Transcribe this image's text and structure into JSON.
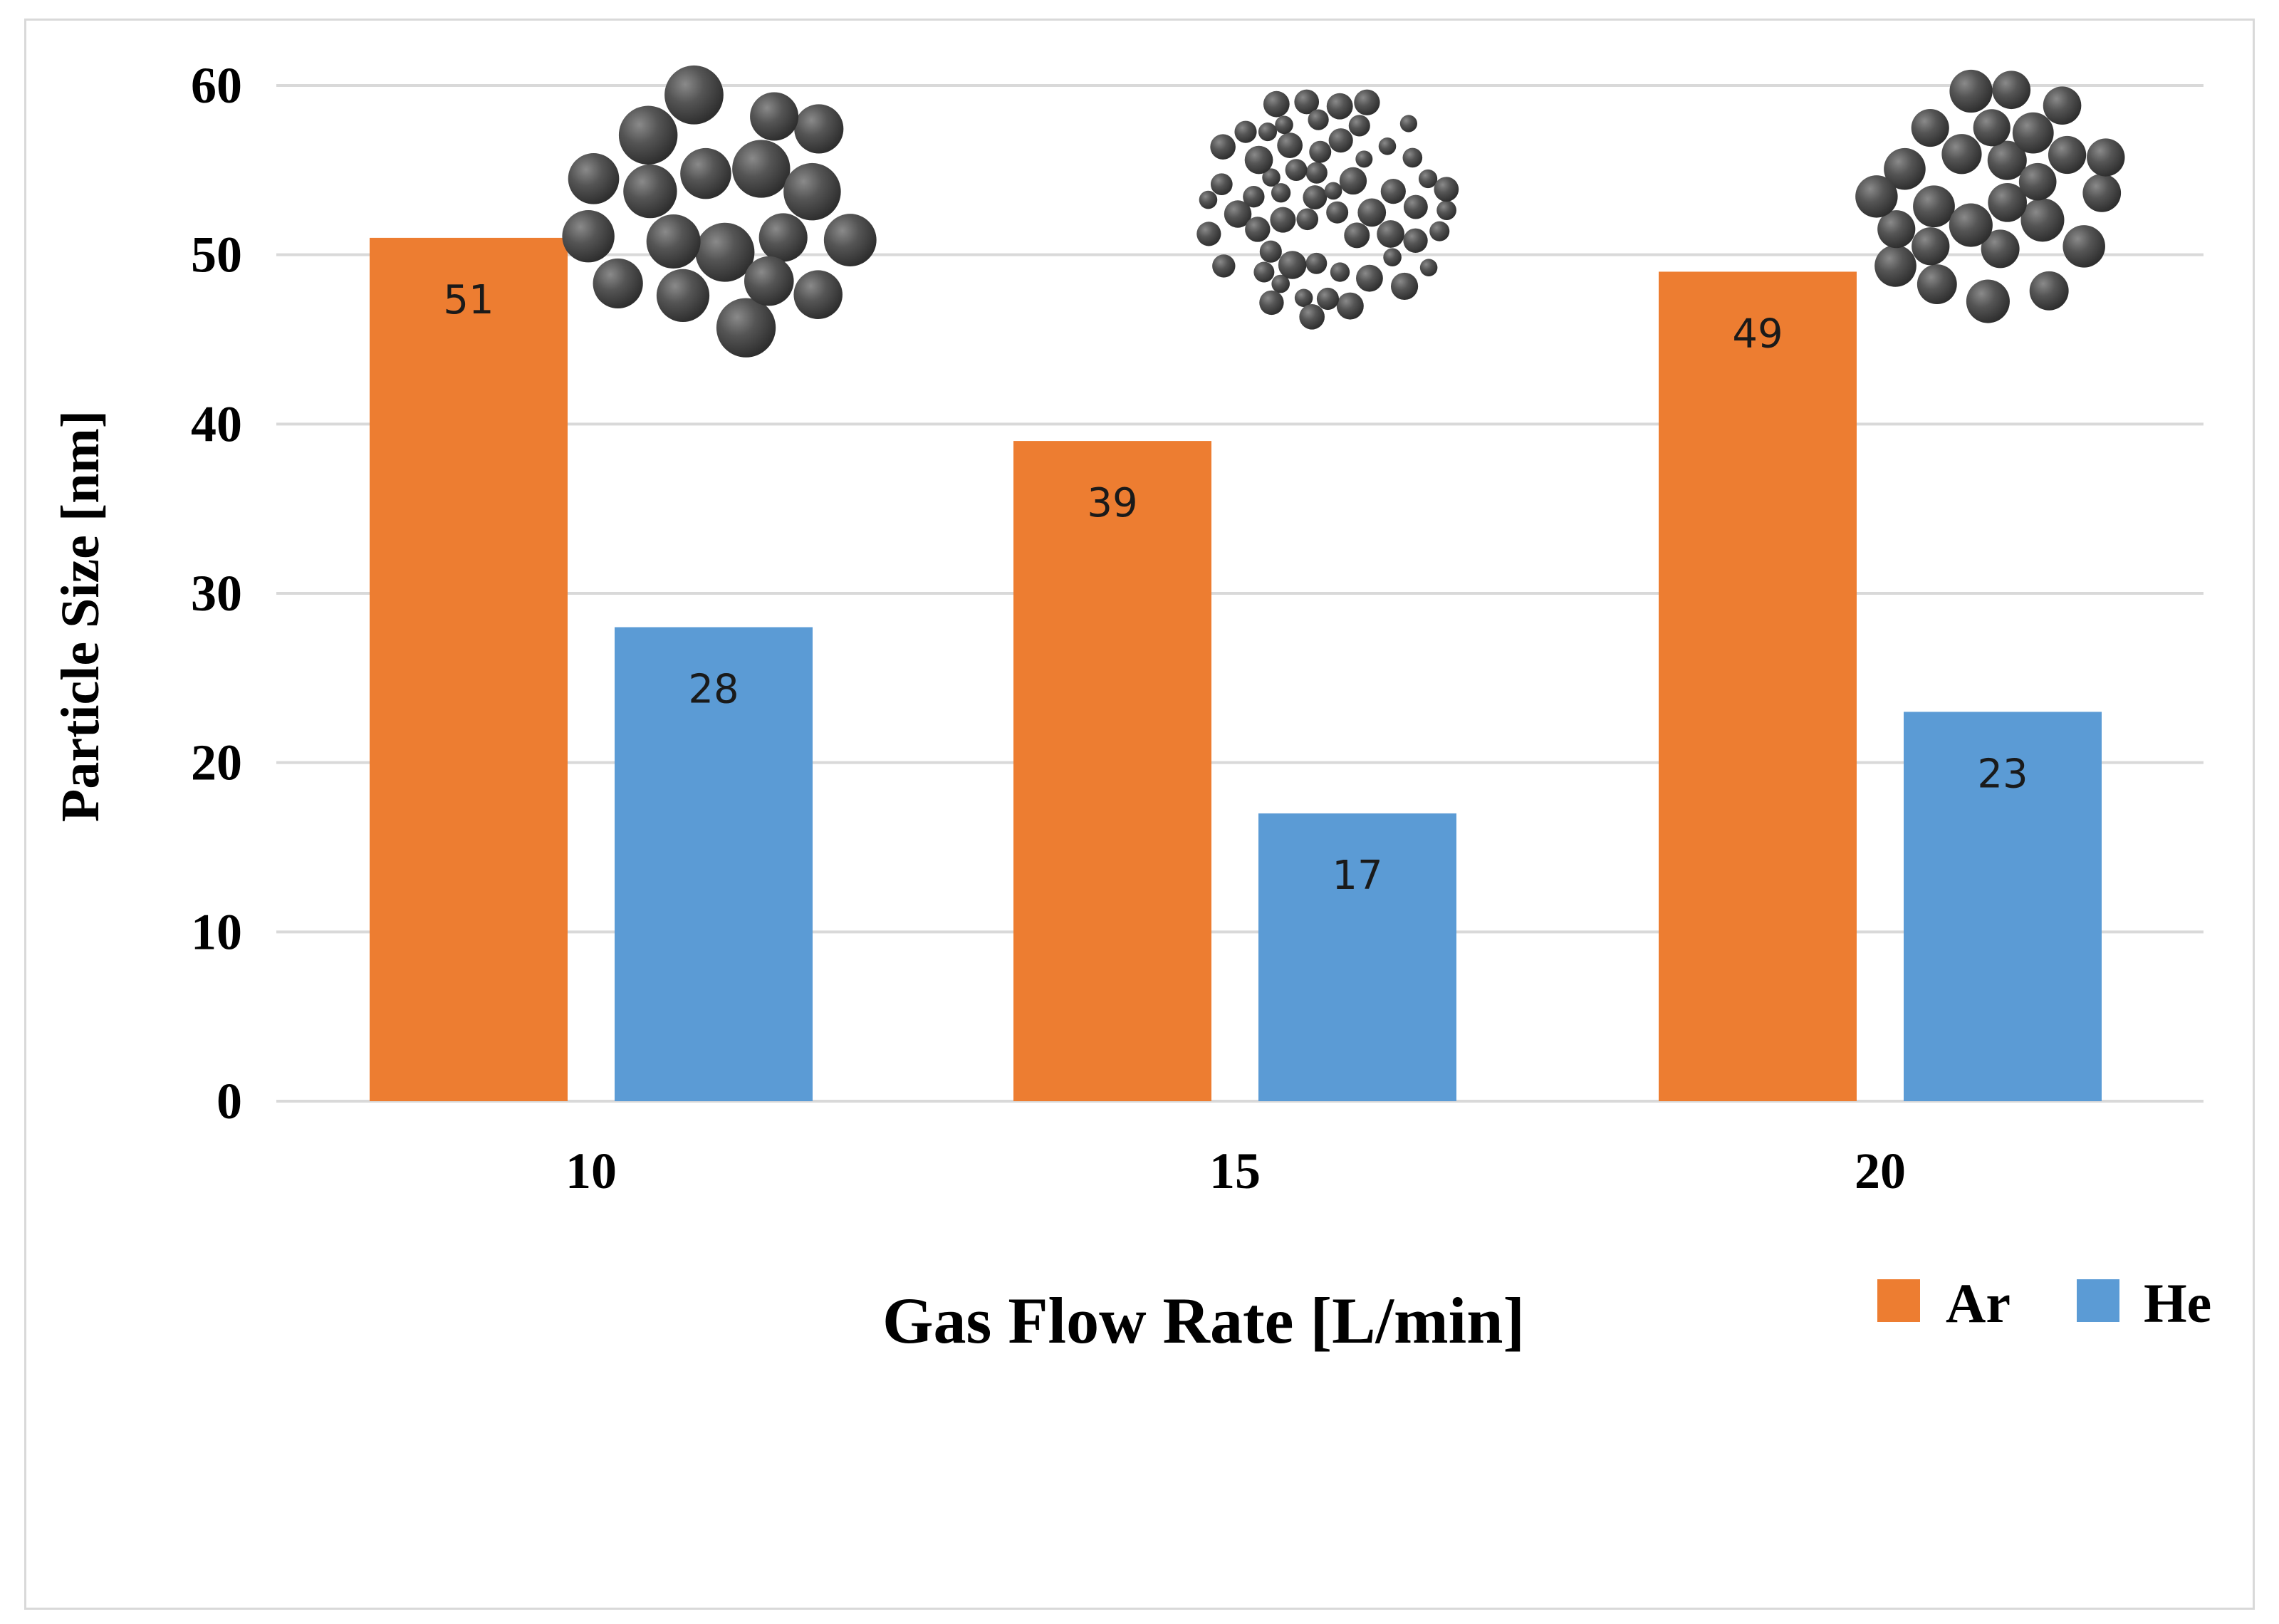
{
  "chart_data": {
    "type": "bar",
    "title": "",
    "xlabel": "Gas Flow Rate [L/min]",
    "ylabel": "Particle Size [nm]",
    "categories": [
      "10",
      "15",
      "20"
    ],
    "series": [
      {
        "name": "Ar",
        "color": "#ED7D31",
        "values": [
          51,
          39,
          49
        ]
      },
      {
        "name": "He",
        "color": "#5B9BD5",
        "values": [
          28,
          17,
          23
        ]
      }
    ],
    "ylim": [
      0,
      60
    ],
    "yticks": [
      0,
      10,
      20,
      30,
      40,
      50,
      60
    ],
    "grid": true,
    "legend": "bottom-right",
    "annotations": [
      "particle-cluster-large",
      "particle-cluster-small",
      "particle-cluster-medium"
    ]
  },
  "colors": {
    "gridline": "#D9D9D9",
    "particle": "#4a4a4a"
  }
}
